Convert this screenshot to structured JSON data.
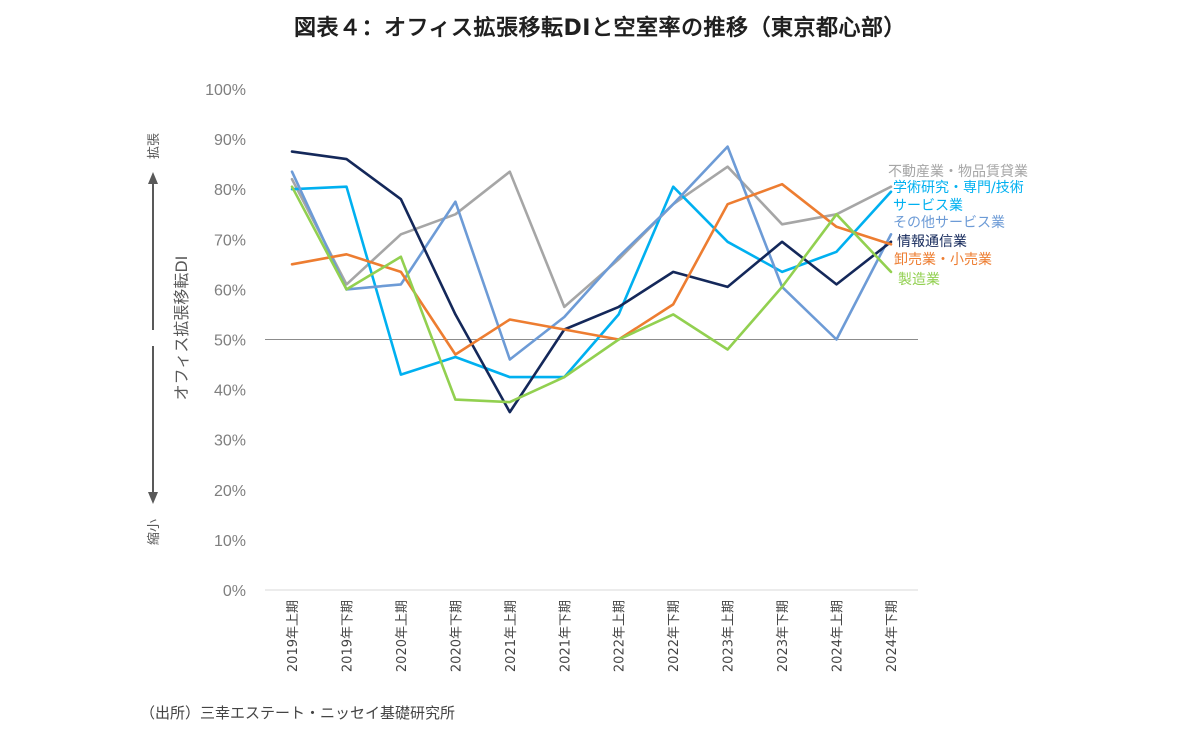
{
  "chart_data": {
    "type": "line",
    "title": "図表４：オフィス拡張移転DIと空室率の推移（東京都心部）",
    "ylabel": "オフィス拡張移転DI",
    "y_upper_label": "拡張",
    "y_lower_label": "縮小",
    "xlabel": "",
    "ylim": [
      0,
      100
    ],
    "yticks": [
      0,
      10,
      20,
      30,
      40,
      50,
      60,
      70,
      80,
      90,
      100
    ],
    "ytick_suffix": "%",
    "reference_line": 50,
    "categories": [
      "2019年上期",
      "2019年下期",
      "2020年上期",
      "2020年下期",
      "2021年上期",
      "2021年下期",
      "2022年上期",
      "2022年下期",
      "2023年上期",
      "2023年下期",
      "2024年上期",
      "2024年下期"
    ],
    "series": [
      {
        "name": "不動産業・物品賃貸業",
        "color": "#a6a6a6",
        "values": [
          82,
          61,
          71,
          75,
          83.5,
          56.5,
          66,
          77,
          84.5,
          73,
          75,
          80.5
        ]
      },
      {
        "name": "学術研究・専門/技術サービス業",
        "color": "#00b0f0",
        "values": [
          80,
          80.5,
          43,
          46.5,
          42.5,
          42.5,
          55,
          80.5,
          69.5,
          63.5,
          67.5,
          79.5
        ]
      },
      {
        "name": "その他サービス業",
        "color": "#6d9bd6",
        "values": [
          83.5,
          60,
          61,
          77.5,
          46,
          54.5,
          66.5,
          77,
          88.5,
          60.5,
          50,
          71
        ]
      },
      {
        "name": "情報通信業",
        "color": "#14285a",
        "values": [
          87.5,
          86,
          78,
          55,
          35.5,
          52,
          56.5,
          63.5,
          60.5,
          69.5,
          61,
          69.5
        ]
      },
      {
        "name": "卸売業・小売業",
        "color": "#ed7d31",
        "values": [
          65,
          67,
          63.5,
          47,
          54,
          52,
          50,
          57,
          77,
          81,
          72.5,
          69
        ]
      },
      {
        "name": "製造業",
        "color": "#92d050",
        "values": [
          80.5,
          60,
          66.5,
          38,
          37.5,
          42.5,
          50,
          55,
          48,
          60.5,
          75,
          63.5
        ]
      }
    ],
    "legend_placement": "right"
  },
  "source_note": "（出所）三幸エステート・ニッセイ基礎研究所"
}
